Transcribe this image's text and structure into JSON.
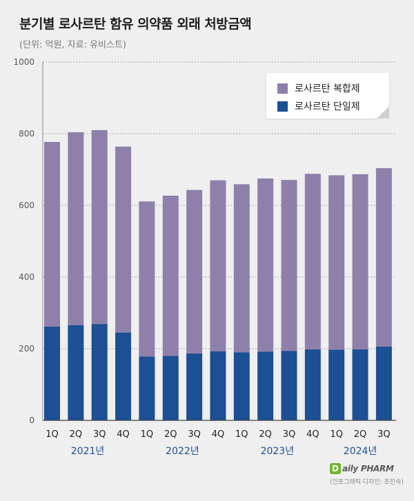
{
  "header": {
    "title": "분기별 로사르탄 함유 의약품 외래 처방금액",
    "subtitle": "(단위: 억원, 자료: 유비스트)"
  },
  "chart_data": {
    "type": "bar",
    "stacked": true,
    "categories": [
      "1Q",
      "2Q",
      "3Q",
      "4Q",
      "1Q",
      "2Q",
      "3Q",
      "4Q",
      "1Q",
      "2Q",
      "3Q",
      "4Q",
      "1Q",
      "2Q",
      "3Q"
    ],
    "year_groups": [
      {
        "label": "2021년",
        "start": 0,
        "end": 3
      },
      {
        "label": "2022년",
        "start": 4,
        "end": 7
      },
      {
        "label": "2023년",
        "start": 8,
        "end": 11
      },
      {
        "label": "2024년",
        "start": 12,
        "end": 14
      }
    ],
    "series": [
      {
        "name": "로사르탄 단일제",
        "color": "#1c4f93",
        "values": [
          262,
          266,
          269,
          245,
          178,
          180,
          187,
          193,
          190,
          192,
          194,
          198,
          197,
          198,
          206
        ]
      },
      {
        "name": "로사르탄 복합제",
        "color": "#8e80ab",
        "values": [
          515,
          538,
          541,
          519,
          433,
          447,
          456,
          477,
          469,
          483,
          477,
          490,
          487,
          489,
          498
        ]
      }
    ],
    "yticks": [
      0,
      200,
      400,
      600,
      800,
      1000
    ],
    "ylim": [
      0,
      1000
    ],
    "grid": true,
    "legend_position": "top-right"
  },
  "legend": {
    "items": [
      {
        "label": "로사르탄 복합제",
        "color": "#8e80ab"
      },
      {
        "label": "로사르탄 단일제",
        "color": "#1c4f93"
      }
    ]
  },
  "footer": {
    "logo_mark": "D",
    "logo_text": "aily PHARM",
    "credit": "(인포그래픽 디자인: 조진숙)"
  }
}
